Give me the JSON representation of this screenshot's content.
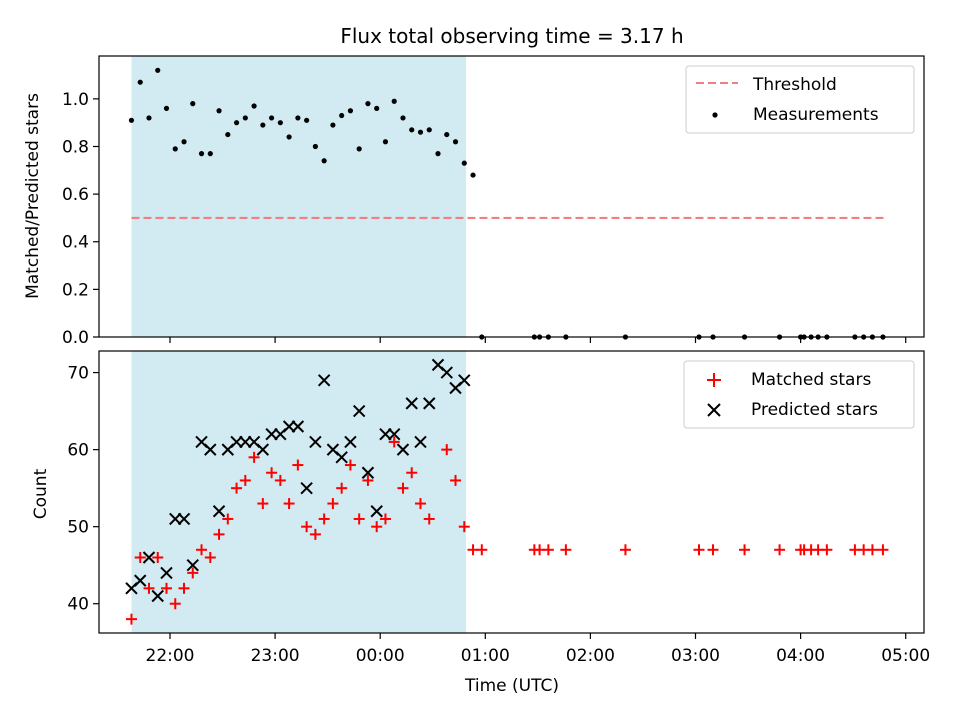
{
  "title": "Flux total observing time = 3.17 h",
  "xlabel": "Time (UTC)",
  "x_tick_labels": [
    "22:00",
    "23:00",
    "00:00",
    "01:00",
    "02:00",
    "03:00",
    "04:00",
    "05:00"
  ],
  "colors": {
    "shade": "#add8e6",
    "threshold": "#f08080",
    "measurements": "#000000",
    "matched": "#ff0000",
    "predicted": "#000000"
  },
  "chart_data": [
    {
      "type": "scatter",
      "ylabel": "Matched/Predicted stars",
      "ylim": [
        0,
        1.18
      ],
      "y_ticks": [
        "0.0",
        "0.2",
        "0.4",
        "0.6",
        "0.8",
        "1.0"
      ],
      "legend_position": "top-right",
      "shaded_interval": [
        "21:38",
        "00:49"
      ],
      "threshold": {
        "name": "Threshold",
        "value": 0.5,
        "x_range": [
          "21:38",
          "04:48"
        ]
      },
      "series": [
        {
          "name": "Measurements",
          "points": [
            [
              "21:38",
              0.91
            ],
            [
              "21:43",
              1.07
            ],
            [
              "21:48",
              0.92
            ],
            [
              "21:53",
              1.12
            ],
            [
              "21:58",
              0.96
            ],
            [
              "22:03",
              0.79
            ],
            [
              "22:08",
              0.82
            ],
            [
              "22:13",
              0.98
            ],
            [
              "22:18",
              0.77
            ],
            [
              "22:23",
              0.77
            ],
            [
              "22:28",
              0.95
            ],
            [
              "22:33",
              0.85
            ],
            [
              "22:38",
              0.9
            ],
            [
              "22:43",
              0.92
            ],
            [
              "22:48",
              0.97
            ],
            [
              "22:53",
              0.89
            ],
            [
              "22:58",
              0.92
            ],
            [
              "23:03",
              0.9
            ],
            [
              "23:08",
              0.84
            ],
            [
              "23:13",
              0.92
            ],
            [
              "23:18",
              0.91
            ],
            [
              "23:23",
              0.8
            ],
            [
              "23:28",
              0.74
            ],
            [
              "23:33",
              0.89
            ],
            [
              "23:38",
              0.93
            ],
            [
              "23:43",
              0.95
            ],
            [
              "23:48",
              0.79
            ],
            [
              "23:53",
              0.98
            ],
            [
              "23:58",
              0.96
            ],
            [
              "00:03",
              0.82
            ],
            [
              "00:08",
              0.99
            ],
            [
              "00:13",
              0.92
            ],
            [
              "00:18",
              0.87
            ],
            [
              "00:23",
              0.86
            ],
            [
              "00:28",
              0.87
            ],
            [
              "00:33",
              0.77
            ],
            [
              "00:38",
              0.85
            ],
            [
              "00:43",
              0.82
            ],
            [
              "00:48",
              0.73
            ],
            [
              "00:53",
              0.68
            ],
            [
              "00:58",
              0.0
            ],
            [
              "01:28",
              0.0
            ],
            [
              "01:31",
              0.0
            ],
            [
              "01:36",
              0.0
            ],
            [
              "01:46",
              0.0
            ],
            [
              "02:20",
              0.0
            ],
            [
              "03:02",
              0.0
            ],
            [
              "03:10",
              0.0
            ],
            [
              "03:28",
              0.0
            ],
            [
              "03:48",
              0.0
            ],
            [
              "04:00",
              0.0
            ],
            [
              "04:02",
              0.0
            ],
            [
              "04:06",
              0.0
            ],
            [
              "04:10",
              0.0
            ],
            [
              "04:15",
              0.0
            ],
            [
              "04:31",
              0.0
            ],
            [
              "04:36",
              0.0
            ],
            [
              "04:41",
              0.0
            ],
            [
              "04:47",
              0.0
            ]
          ]
        }
      ]
    },
    {
      "type": "scatter",
      "ylabel": "Count",
      "ylim": [
        36.2,
        72.8
      ],
      "y_ticks": [
        "40",
        "50",
        "60",
        "70"
      ],
      "legend_position": "top-right",
      "shaded_interval": [
        "21:38",
        "00:49"
      ],
      "series": [
        {
          "name": "Matched stars",
          "marker": "+",
          "points": [
            [
              "21:38",
              38
            ],
            [
              "21:43",
              46
            ],
            [
              "21:48",
              42
            ],
            [
              "21:53",
              46
            ],
            [
              "21:58",
              42
            ],
            [
              "22:03",
              40
            ],
            [
              "22:08",
              42
            ],
            [
              "22:13",
              44
            ],
            [
              "22:18",
              47
            ],
            [
              "22:23",
              46
            ],
            [
              "22:28",
              49
            ],
            [
              "22:33",
              51
            ],
            [
              "22:38",
              55
            ],
            [
              "22:43",
              56
            ],
            [
              "22:48",
              59
            ],
            [
              "22:53",
              53
            ],
            [
              "22:58",
              57
            ],
            [
              "23:03",
              56
            ],
            [
              "23:08",
              53
            ],
            [
              "23:13",
              58
            ],
            [
              "23:18",
              50
            ],
            [
              "23:23",
              49
            ],
            [
              "23:28",
              51
            ],
            [
              "23:33",
              53
            ],
            [
              "23:38",
              55
            ],
            [
              "23:43",
              58
            ],
            [
              "23:48",
              51
            ],
            [
              "23:53",
              56
            ],
            [
              "23:58",
              50
            ],
            [
              "00:03",
              51
            ],
            [
              "00:08",
              61
            ],
            [
              "00:13",
              55
            ],
            [
              "00:18",
              57
            ],
            [
              "00:23",
              53
            ],
            [
              "00:28",
              51
            ],
            [
              "00:38",
              60
            ],
            [
              "00:43",
              56
            ],
            [
              "00:48",
              50
            ],
            [
              "00:53",
              47
            ],
            [
              "00:58",
              47
            ],
            [
              "01:28",
              47
            ],
            [
              "01:31",
              47
            ],
            [
              "01:36",
              47
            ],
            [
              "01:46",
              47
            ],
            [
              "02:20",
              47
            ],
            [
              "03:02",
              47
            ],
            [
              "03:10",
              47
            ],
            [
              "03:28",
              47
            ],
            [
              "03:48",
              47
            ],
            [
              "04:00",
              47
            ],
            [
              "04:02",
              47
            ],
            [
              "04:06",
              47
            ],
            [
              "04:10",
              47
            ],
            [
              "04:15",
              47
            ],
            [
              "04:31",
              47
            ],
            [
              "04:36",
              47
            ],
            [
              "04:41",
              47
            ],
            [
              "04:47",
              47
            ]
          ]
        },
        {
          "name": "Predicted stars",
          "marker": "x",
          "points": [
            [
              "21:38",
              42
            ],
            [
              "21:43",
              43
            ],
            [
              "21:48",
              46
            ],
            [
              "21:53",
              41
            ],
            [
              "21:58",
              44
            ],
            [
              "22:03",
              51
            ],
            [
              "22:08",
              51
            ],
            [
              "22:13",
              45
            ],
            [
              "22:18",
              61
            ],
            [
              "22:23",
              60
            ],
            [
              "22:28",
              52
            ],
            [
              "22:33",
              60
            ],
            [
              "22:38",
              61
            ],
            [
              "22:43",
              61
            ],
            [
              "22:48",
              61
            ],
            [
              "22:53",
              60
            ],
            [
              "22:58",
              62
            ],
            [
              "23:03",
              62
            ],
            [
              "23:08",
              63
            ],
            [
              "23:13",
              63
            ],
            [
              "23:18",
              55
            ],
            [
              "23:23",
              61
            ],
            [
              "23:28",
              69
            ],
            [
              "23:33",
              60
            ],
            [
              "23:38",
              59
            ],
            [
              "23:43",
              61
            ],
            [
              "23:48",
              65
            ],
            [
              "23:53",
              57
            ],
            [
              "23:58",
              52
            ],
            [
              "00:03",
              62
            ],
            [
              "00:08",
              62
            ],
            [
              "00:13",
              60
            ],
            [
              "00:18",
              66
            ],
            [
              "00:23",
              61
            ],
            [
              "00:28",
              66
            ],
            [
              "00:33",
              71
            ],
            [
              "00:38",
              70
            ],
            [
              "00:43",
              68
            ],
            [
              "00:48",
              69
            ]
          ]
        }
      ]
    }
  ]
}
